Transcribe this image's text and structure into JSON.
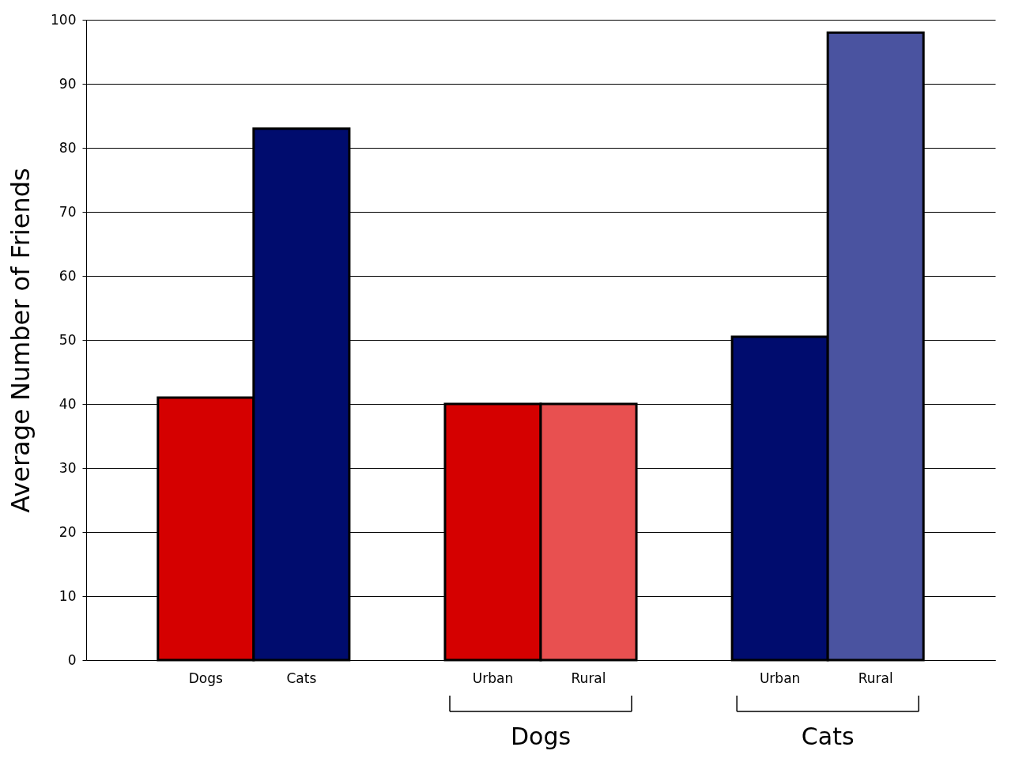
{
  "chart_data": {
    "type": "bar",
    "ylabel": "Average Number of Friends",
    "categories": [
      "Dogs",
      "Cats",
      null,
      "Urban",
      "Rural",
      null,
      "Urban",
      "Rural"
    ],
    "values": [
      41,
      83,
      null,
      40,
      40,
      null,
      50.5,
      98
    ],
    "colors": [
      "#d50000",
      "#000c6e",
      "#ffffff",
      "#d50000",
      "#e85050",
      "#ffffff",
      "#000c6e",
      "#4a53a0"
    ],
    "ylim": [
      0,
      100
    ],
    "yticks": [
      0,
      10,
      20,
      30,
      40,
      50,
      60,
      70,
      80,
      90,
      100
    ],
    "grid": "y",
    "annotations": [
      "Dogs",
      "Cats"
    ]
  }
}
